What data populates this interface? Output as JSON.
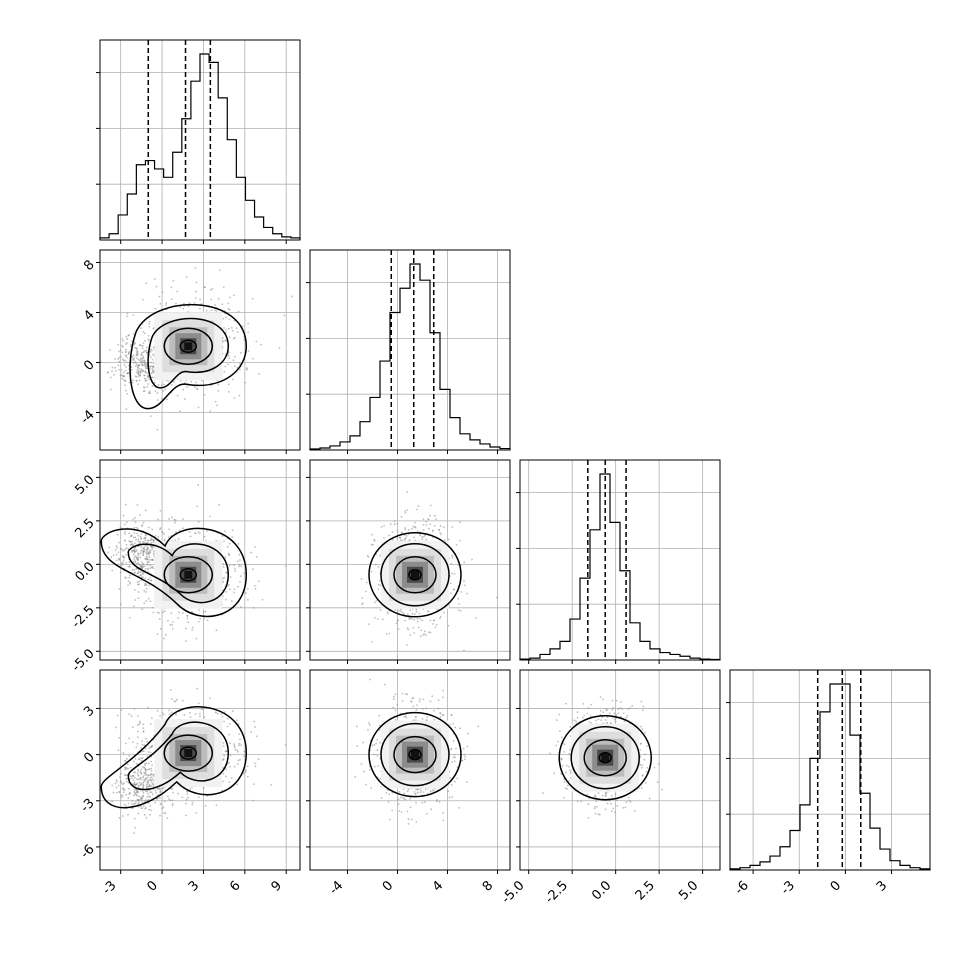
{
  "chart_data": {
    "type": "corner",
    "description_ticks": {
      "p1": [
        "-3",
        "0",
        "3",
        "6",
        "9"
      ],
      "p2": [
        "-4",
        "0",
        "4",
        "8"
      ],
      "p3": [
        "-5.0",
        "-2.5",
        "0.0",
        "2.5",
        "5.0"
      ],
      "p4": [
        "-6",
        "-3",
        "0",
        "3"
      ]
    },
    "params": [
      {
        "id": "p1",
        "range": [
          -4.5,
          10.0
        ],
        "ticks": [
          -3,
          0,
          3,
          6,
          9
        ],
        "tick_labels": [
          "-3",
          "0",
          "3",
          "6",
          "9"
        ],
        "quantiles": [
          -1.0,
          1.7,
          3.5
        ],
        "hist": [
          1,
          3,
          12,
          22,
          36,
          38,
          34,
          30,
          42,
          58,
          76,
          89,
          85,
          68,
          48,
          30,
          19,
          11,
          6,
          3,
          1.5,
          1
        ]
      },
      {
        "id": "p2",
        "range": [
          -7.0,
          9.0
        ],
        "ticks": [
          -4,
          0,
          4,
          8
        ],
        "tick_labels": [
          "-4",
          "0",
          "4",
          "8"
        ],
        "quantiles": [
          -0.5,
          1.3,
          2.9
        ],
        "hist": [
          0.5,
          1,
          2,
          4,
          7,
          14,
          26,
          44,
          68,
          80,
          92,
          84,
          58,
          30,
          16,
          8,
          5,
          3,
          1.5,
          0.7
        ]
      },
      {
        "id": "p3",
        "range": [
          -5.5,
          6.0
        ],
        "ticks": [
          -5,
          -2.5,
          0,
          2.5,
          5
        ],
        "tick_labels": [
          "-5.0",
          "-2.5",
          "0.0",
          "2.5",
          "5.0"
        ],
        "quantiles": [
          -1.6,
          -0.6,
          0.6
        ],
        "hist": [
          0.5,
          1,
          3,
          6,
          10,
          22,
          44,
          70,
          100,
          74,
          48,
          20,
          10,
          6,
          4,
          3,
          2,
          1,
          0.5,
          0.3
        ]
      },
      {
        "id": "p4",
        "range": [
          -7.5,
          5.5
        ],
        "ticks": [
          -6,
          -3,
          0,
          3
        ],
        "tick_labels": [
          "-6",
          "-3",
          "0",
          "3"
        ],
        "quantiles": [
          -1.8,
          -0.2,
          1.0
        ],
        "hist": [
          0.5,
          1,
          2,
          3.5,
          6,
          10,
          17,
          28,
          48,
          68,
          80,
          80,
          58,
          33,
          18,
          9,
          4,
          2,
          1,
          0.5
        ]
      }
    ],
    "pairs": [
      {
        "row": 1,
        "col": 0,
        "peak": [
          1.9,
          1.3
        ],
        "scatter_spread": [
          2.2,
          2.2
        ]
      },
      {
        "row": 2,
        "col": 0,
        "peak": [
          1.9,
          -0.6
        ],
        "scatter_spread": [
          2.2,
          1.6
        ]
      },
      {
        "row": 2,
        "col": 1,
        "peak": [
          1.4,
          -0.6
        ],
        "scatter_spread": [
          1.7,
          1.6
        ]
      },
      {
        "row": 3,
        "col": 0,
        "peak": [
          1.9,
          0.1
        ],
        "scatter_spread": [
          2.2,
          1.7
        ]
      },
      {
        "row": 3,
        "col": 1,
        "peak": [
          1.4,
          0.0
        ],
        "scatter_spread": [
          1.7,
          1.7
        ]
      },
      {
        "row": 3,
        "col": 2,
        "peak": [
          -0.6,
          -0.2
        ],
        "scatter_spread": [
          1.2,
          1.7
        ]
      }
    ],
    "quantile_line_style": "dashed",
    "contour_levels": 4,
    "grid": true,
    "legend": "none",
    "colors": {
      "line": "#000000",
      "scatter": "#8a8a8a",
      "grid": "#b0b0b0",
      "density": "#000000"
    }
  }
}
